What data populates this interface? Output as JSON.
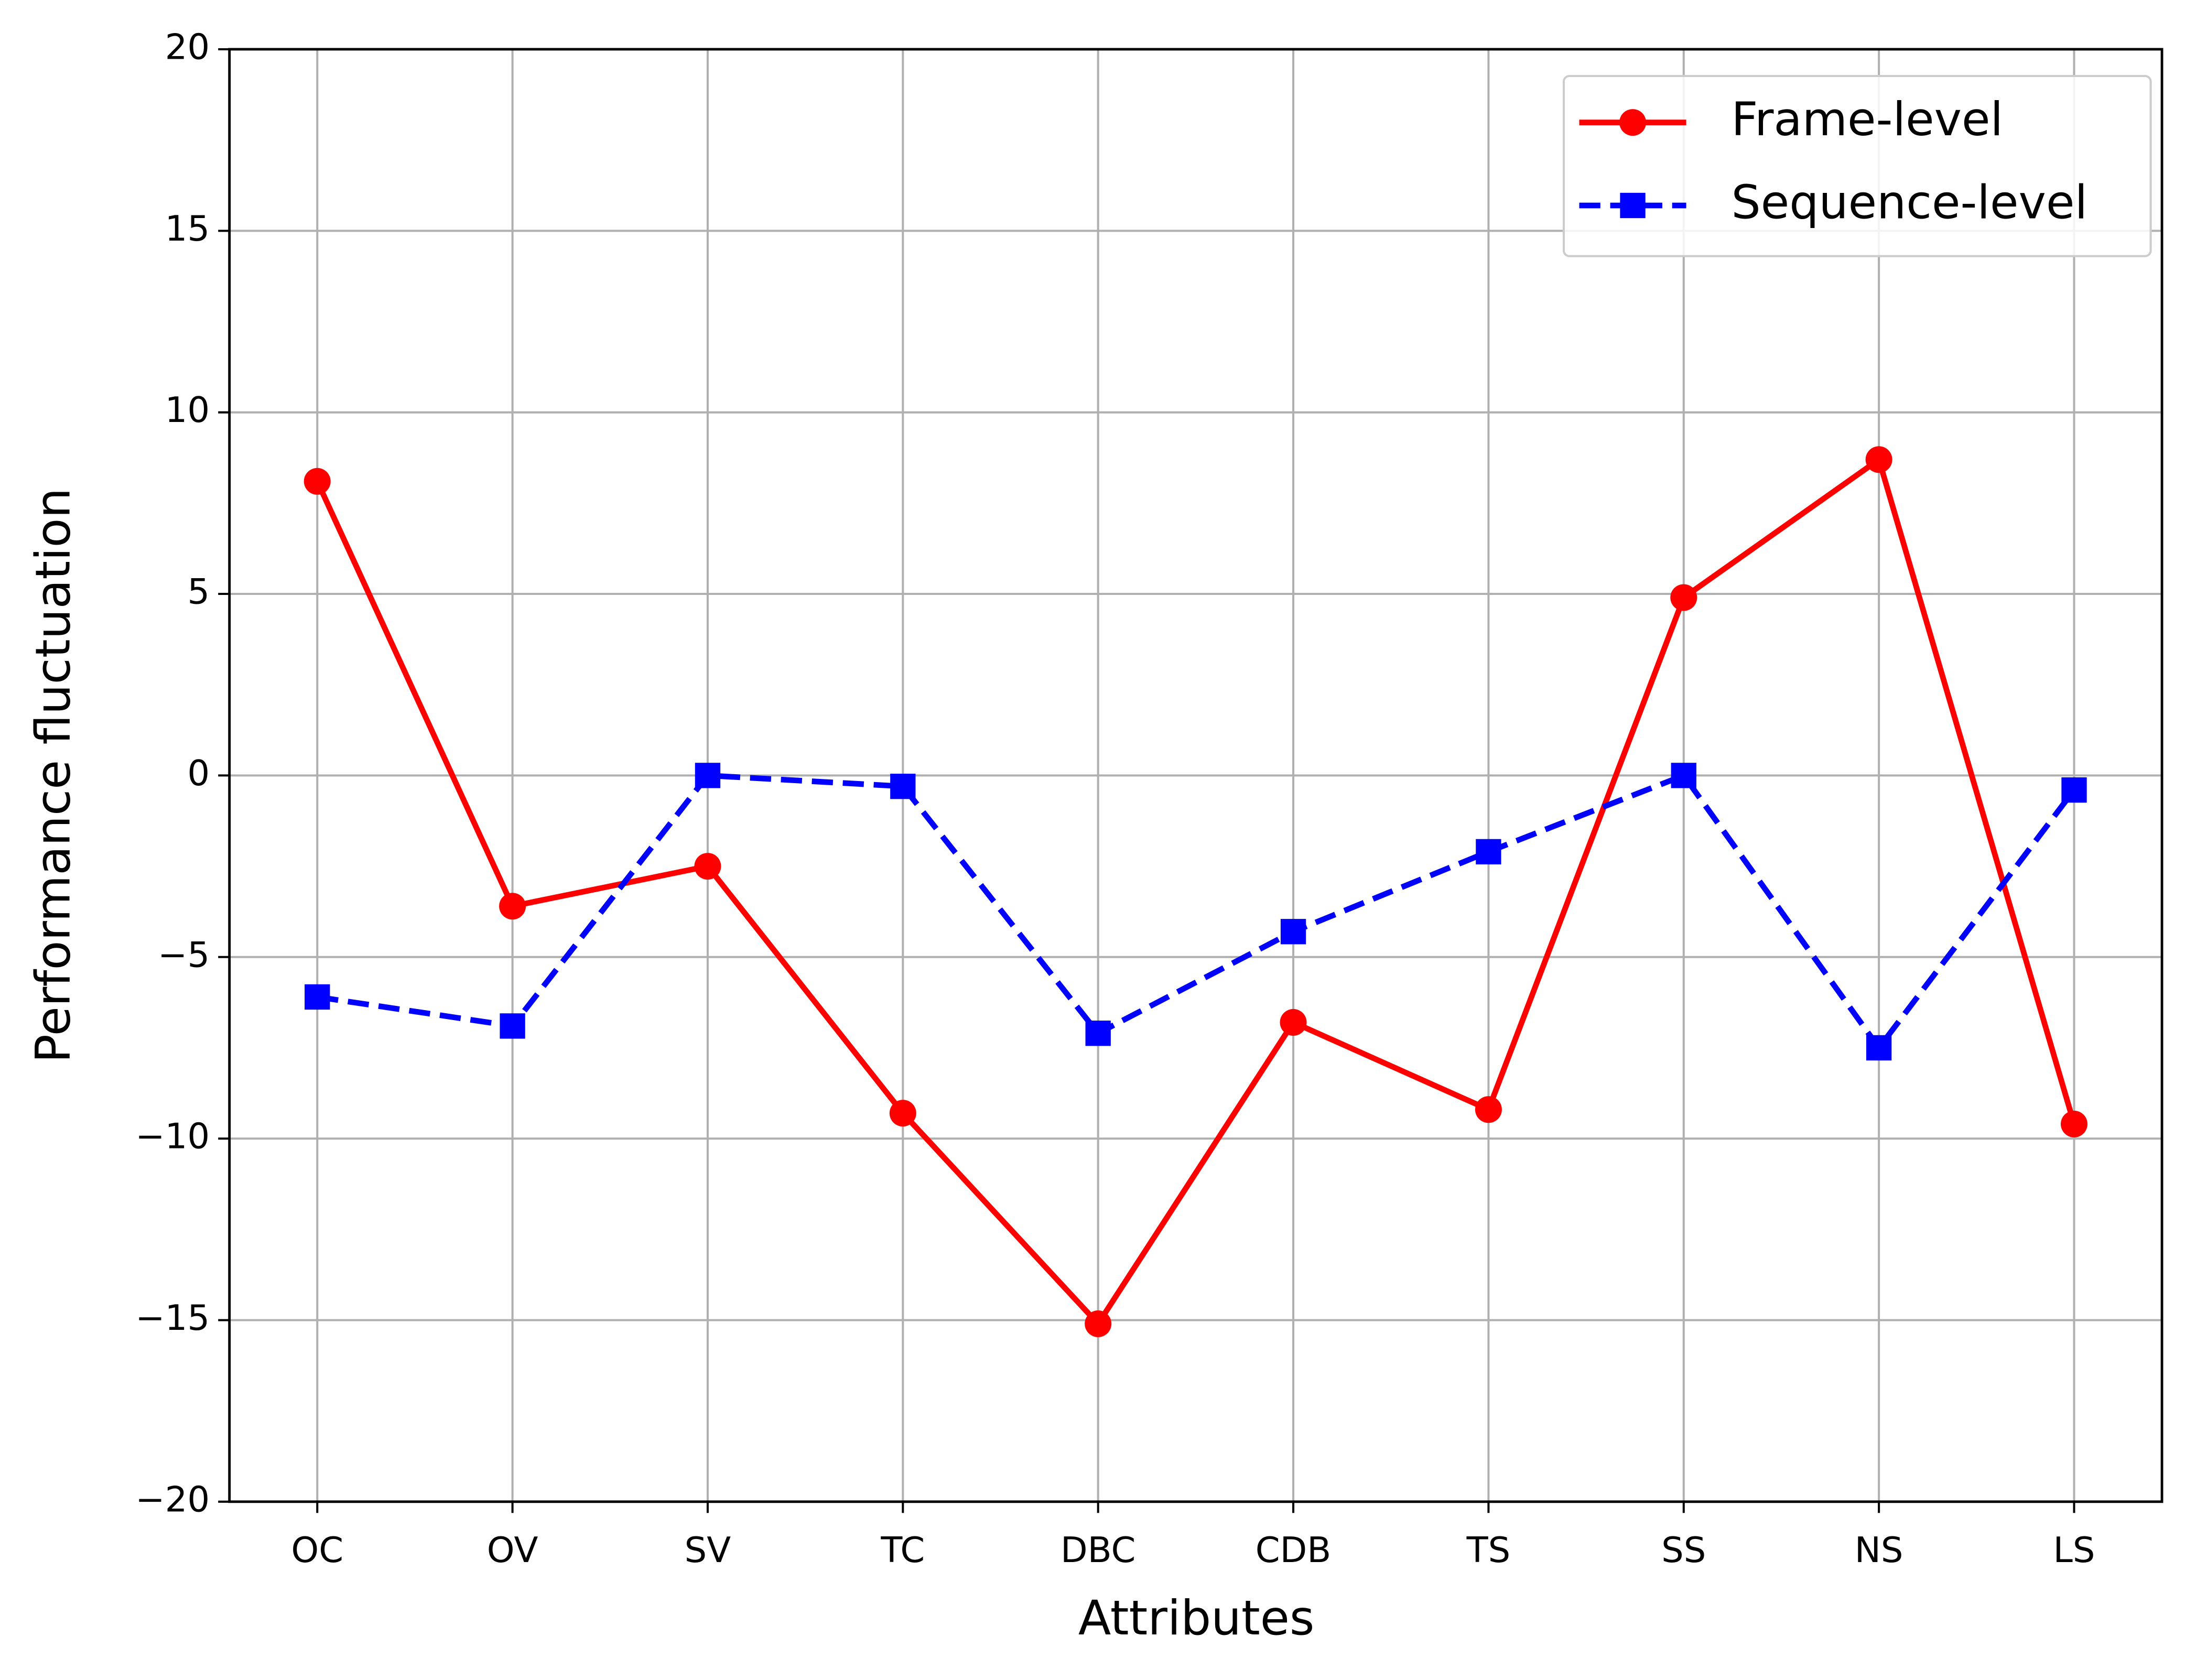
{
  "chart_data": {
    "type": "line",
    "x_label": "Attributes",
    "y_label": "Performance fluctuation",
    "categories": [
      "OC",
      "OV",
      "SV",
      "TC",
      "DBC",
      "CDB",
      "TS",
      "SS",
      "NS",
      "LS"
    ],
    "series": [
      {
        "name": "Frame-level",
        "color": "#ff0000",
        "marker": "circle",
        "linestyle": "solid",
        "values": [
          8.1,
          -3.6,
          -2.5,
          -9.3,
          -15.1,
          -6.8,
          -9.2,
          4.9,
          8.7,
          -9.6
        ]
      },
      {
        "name": "Sequence-level",
        "color": "#0000ff",
        "marker": "square",
        "linestyle": "dashed",
        "values": [
          -6.1,
          -6.9,
          0,
          -0.3,
          -7.1,
          -4.3,
          -2.1,
          0,
          -7.5,
          -0.4
        ]
      }
    ],
    "ylim": [
      -20,
      20
    ],
    "yticks": [
      {
        "value": -20,
        "label": "−20"
      },
      {
        "value": -15,
        "label": "−15"
      },
      {
        "value": -10,
        "label": "−10"
      },
      {
        "value": -5,
        "label": "−5"
      },
      0,
      5,
      10,
      15,
      20
    ],
    "grid": true,
    "legend_position": "upper right"
  }
}
